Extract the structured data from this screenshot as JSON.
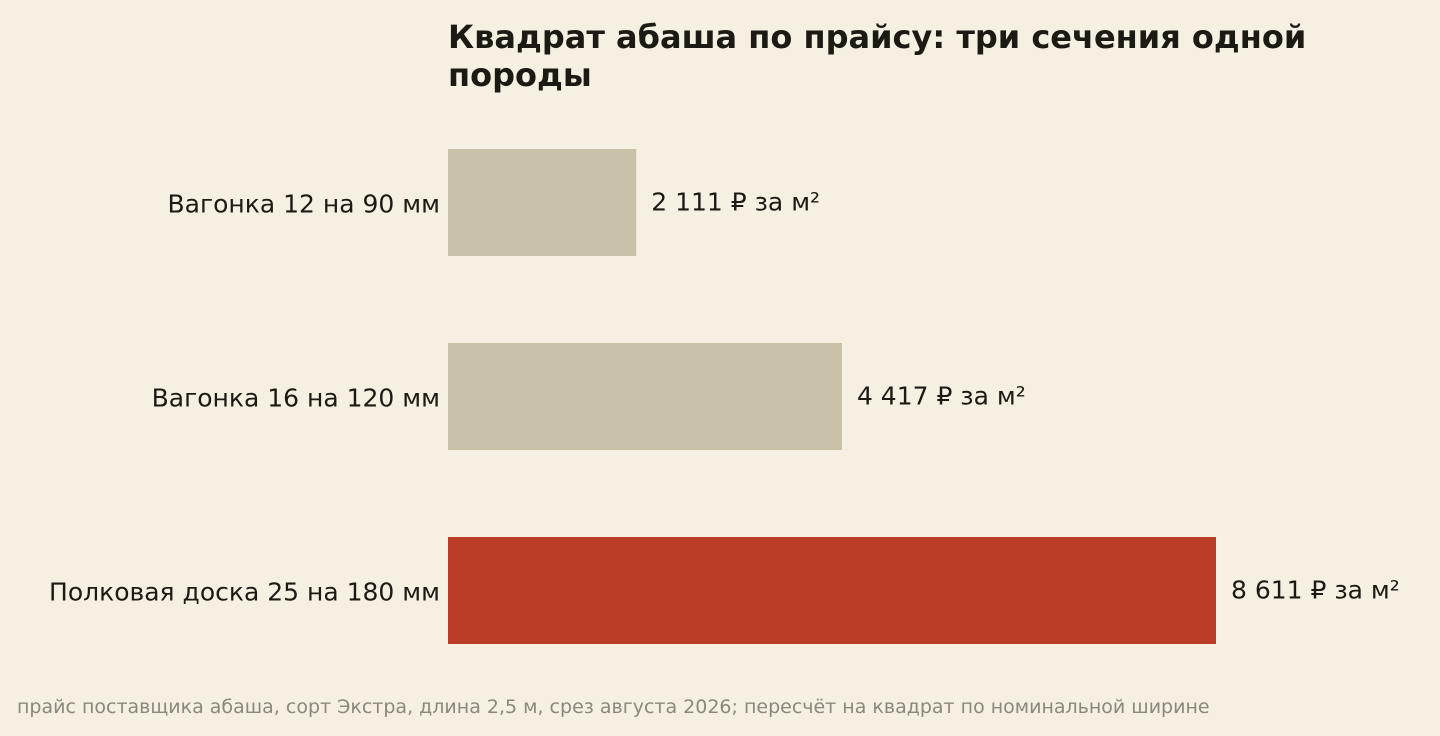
{
  "chart_data": {
    "type": "bar",
    "orientation": "horizontal",
    "title": "Квадрат абаша по прайсу: три сечения одной породы",
    "categories": [
      "Вагонка 12 на 90 мм",
      "Вагонка 16 на 120 мм",
      "Полковая доска 25 на 180 мм"
    ],
    "values": [
      2111,
      4417,
      8611
    ],
    "value_labels": [
      "2 111 ₽ за м²",
      "4 417 ₽ за м²",
      "8 611 ₽ за м²"
    ],
    "bar_colors": [
      "#c9c0a8",
      "#c9c0a8",
      "#bc3d27"
    ],
    "xlim": [
      0,
      8611
    ],
    "grid": false,
    "legend": "none",
    "xlabel": "",
    "ylabel": ""
  },
  "footer": {
    "source": "прайс поставщика абаша, сорт Экстра, длина 2,5 м, срез августа 2026; пересчёт на квадрат по номинальной ширине"
  },
  "colors": {
    "background": "#f6f0e3",
    "text": "#1d1a14",
    "muted": "#8c877c"
  }
}
